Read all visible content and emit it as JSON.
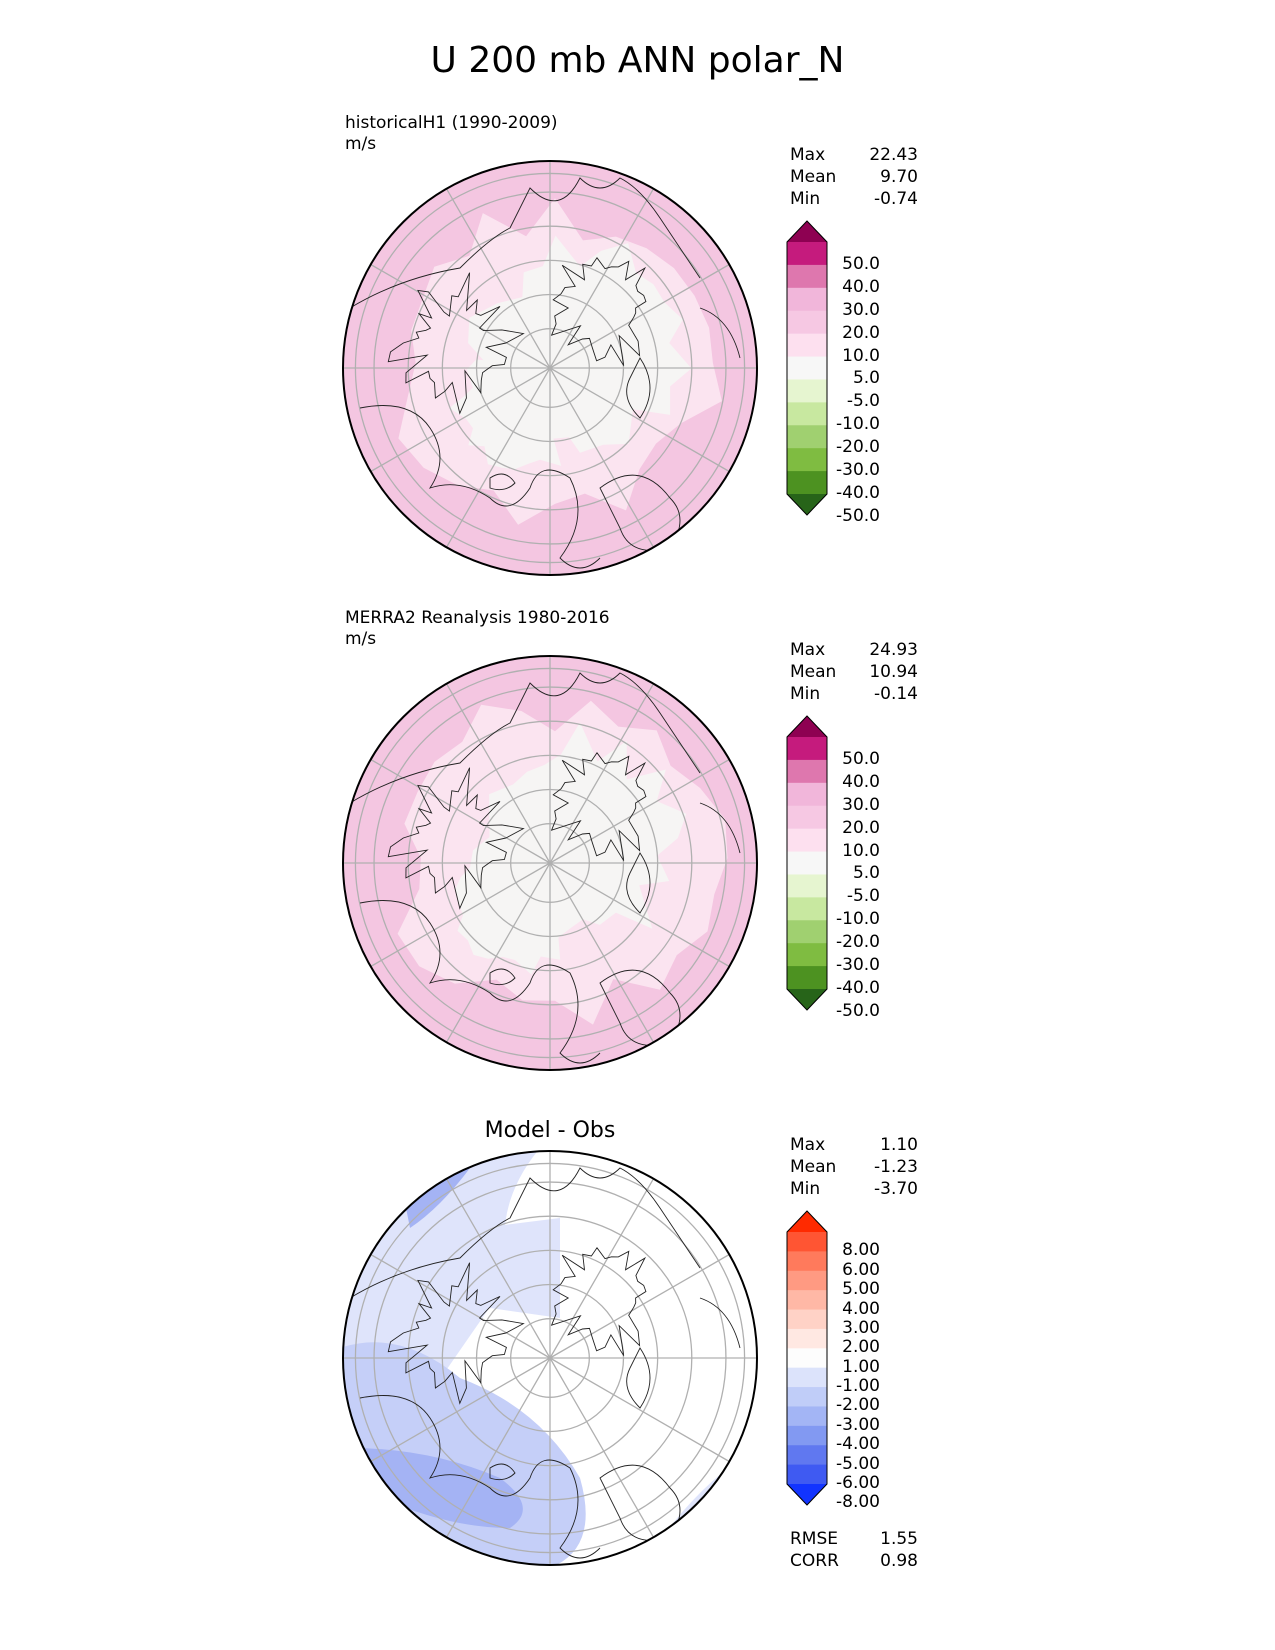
{
  "title": "U 200 mb ANN polar_N",
  "panels": [
    {
      "name": "test",
      "title": "historicalH1 (1990-2009)",
      "units": "m/s",
      "stats": [
        {
          "label": "Max",
          "value": "22.43"
        },
        {
          "label": "Mean",
          "value": "9.70"
        },
        {
          "label": "Min",
          "value": "-0.74"
        }
      ],
      "colorbar": {
        "labels": [
          "50.0",
          "40.0",
          "30.0",
          "20.0",
          "10.0",
          "5.0",
          "-5.0",
          "-10.0",
          "-20.0",
          "-30.0",
          "-40.0",
          "-50.0"
        ],
        "colors": [
          "#8e0152",
          "#c51b7d",
          "#de77ae",
          "#f1b6da",
          "#f6c8e3",
          "#fde0ef",
          "#f7f7f7",
          "#e6f5d0",
          "#c8e8a0",
          "#a0d070",
          "#7fbc41",
          "#4d9221",
          "#276419"
        ]
      },
      "map_colors": [
        "#f4c6e1",
        "#fbe4f0",
        "#f6f5f4",
        "#e896c6"
      ]
    },
    {
      "name": "reference",
      "title": "MERRA2 Reanalysis 1980-2016",
      "units": "m/s",
      "stats": [
        {
          "label": "Max",
          "value": "24.93"
        },
        {
          "label": "Mean",
          "value": "10.94"
        },
        {
          "label": "Min",
          "value": "-0.14"
        }
      ],
      "colorbar": {
        "labels": [
          "50.0",
          "40.0",
          "30.0",
          "20.0",
          "10.0",
          "5.0",
          "-5.0",
          "-10.0",
          "-20.0",
          "-30.0",
          "-40.0",
          "-50.0"
        ],
        "colors": [
          "#8e0152",
          "#c51b7d",
          "#de77ae",
          "#f1b6da",
          "#f6c8e3",
          "#fde0ef",
          "#f7f7f7",
          "#e6f5d0",
          "#c8e8a0",
          "#a0d070",
          "#7fbc41",
          "#4d9221",
          "#276419"
        ]
      },
      "map_colors": [
        "#f4c6e1",
        "#fbe4f0",
        "#f6f5f4",
        "#e896c6"
      ]
    },
    {
      "name": "difference",
      "title": "Model - Obs",
      "units": "",
      "stats": [
        {
          "label": "Max",
          "value": "1.10"
        },
        {
          "label": "Mean",
          "value": "-1.23"
        },
        {
          "label": "Min",
          "value": "-3.70"
        }
      ],
      "extra_stats": [
        {
          "label": "RMSE",
          "value": "1.55"
        },
        {
          "label": "CORR",
          "value": "0.98"
        }
      ],
      "colorbar": {
        "labels": [
          "8.00",
          "6.00",
          "5.00",
          "4.00",
          "3.00",
          "2.00",
          "1.00",
          "-1.00",
          "-2.00",
          "-3.00",
          "-4.00",
          "-5.00",
          "-6.00",
          "-8.00"
        ],
        "colors": [
          "#ff2a00",
          "#ff5533",
          "#ff7a5c",
          "#ff9a82",
          "#ffb8a6",
          "#ffd2c6",
          "#ffe8e2",
          "#fdfdfd",
          "#dce3fb",
          "#c0cdf8",
          "#a3b5f5",
          "#8299f2",
          "#6078f0",
          "#3f5af2",
          "#1234ff"
        ]
      },
      "map_colors": [
        "#ffffff",
        "#dfe4fb",
        "#c5cff8",
        "#a4b3f4"
      ]
    }
  ]
}
